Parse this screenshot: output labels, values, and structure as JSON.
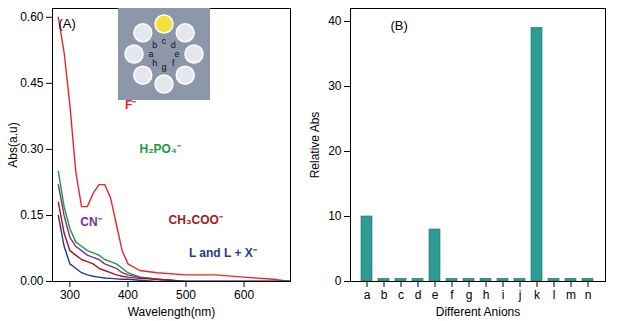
{
  "chart_data": [
    {
      "type": "line",
      "annotation": "(A)",
      "x_label": "Wavelength(nm)",
      "y_label": "Abs(a.u)",
      "x": [
        280,
        290,
        300,
        310,
        320,
        330,
        340,
        350,
        360,
        370,
        380,
        390,
        400,
        420,
        450,
        500,
        550,
        600,
        650,
        680
      ],
      "series": [
        {
          "name": "F⁻",
          "color": "#e8262a",
          "values": [
            0.6,
            0.52,
            0.4,
            0.25,
            0.17,
            0.17,
            0.2,
            0.22,
            0.22,
            0.19,
            0.13,
            0.07,
            0.04,
            0.025,
            0.02,
            0.015,
            0.015,
            0.01,
            0.005,
            0.0
          ]
        },
        {
          "name": "H₂PO₄⁻",
          "color": "#1a9a3a",
          "values": [
            0.25,
            0.17,
            0.12,
            0.09,
            0.08,
            0.07,
            0.065,
            0.06,
            0.05,
            0.045,
            0.04,
            0.03,
            0.02,
            0.01,
            0.005,
            0.0,
            0.0,
            0.0,
            0.0,
            0.0
          ]
        },
        {
          "name": "CN⁻",
          "color": "#7a2f9a",
          "values": [
            0.22,
            0.15,
            0.1,
            0.08,
            0.07,
            0.06,
            0.055,
            0.05,
            0.04,
            0.035,
            0.03,
            0.02,
            0.015,
            0.01,
            0.005,
            0.0,
            0.0,
            0.0,
            0.0,
            0.0
          ]
        },
        {
          "name": "CH₃COO⁻",
          "color": "#a01818",
          "values": [
            0.18,
            0.11,
            0.07,
            0.06,
            0.05,
            0.045,
            0.04,
            0.03,
            0.025,
            0.02,
            0.015,
            0.012,
            0.01,
            0.007,
            0.005,
            0.0,
            0.0,
            0.0,
            0.0,
            0.0
          ]
        },
        {
          "name": "L and L + X⁻",
          "color": "#1f3b9a",
          "values": [
            0.15,
            0.08,
            0.04,
            0.03,
            0.02,
            0.015,
            0.012,
            0.01,
            0.008,
            0.007,
            0.006,
            0.005,
            0.005,
            0.003,
            0.0,
            0.0,
            0.0,
            0.0,
            0.0,
            0.0
          ]
        }
      ],
      "xlim": [
        270,
        680
      ],
      "xticks": [
        300,
        400,
        500,
        600
      ],
      "ylim": [
        0,
        0.62
      ],
      "yticks": [
        {
          "value": 0,
          "label": "0.00"
        },
        {
          "value": 0.15,
          "label": "0.15"
        },
        {
          "value": 0.3,
          "label": "0.30"
        },
        {
          "value": 0.45,
          "label": "0.45"
        },
        {
          "value": 0.6,
          "label": "0.60"
        }
      ],
      "inset": {
        "labels": [
          "a",
          "b",
          "c",
          "d",
          "e",
          "f",
          "g",
          "h"
        ],
        "colors": [
          "#e4e8ee",
          "#e4e8ee",
          "#f2e23a",
          "#e4e8ee",
          "#e4e8ee",
          "#e4e8ee",
          "#e4e8ee",
          "#e4e8ee"
        ]
      }
    },
    {
      "type": "bar",
      "annotation": "(B)",
      "x_label": "Different Anions",
      "y_label": "Relative Abs",
      "categories": [
        "a",
        "b",
        "c",
        "d",
        "e",
        "f",
        "g",
        "h",
        "i",
        "j",
        "k",
        "l",
        "m",
        "n"
      ],
      "values": [
        10,
        0.4,
        0.4,
        0.4,
        8,
        0.4,
        0.4,
        0.4,
        0.4,
        0.4,
        39,
        0.4,
        0.4,
        0.4
      ],
      "color": "#2e9c96",
      "ylim": [
        0,
        42
      ],
      "yticks": [
        0,
        10,
        20,
        30,
        40
      ]
    }
  ]
}
